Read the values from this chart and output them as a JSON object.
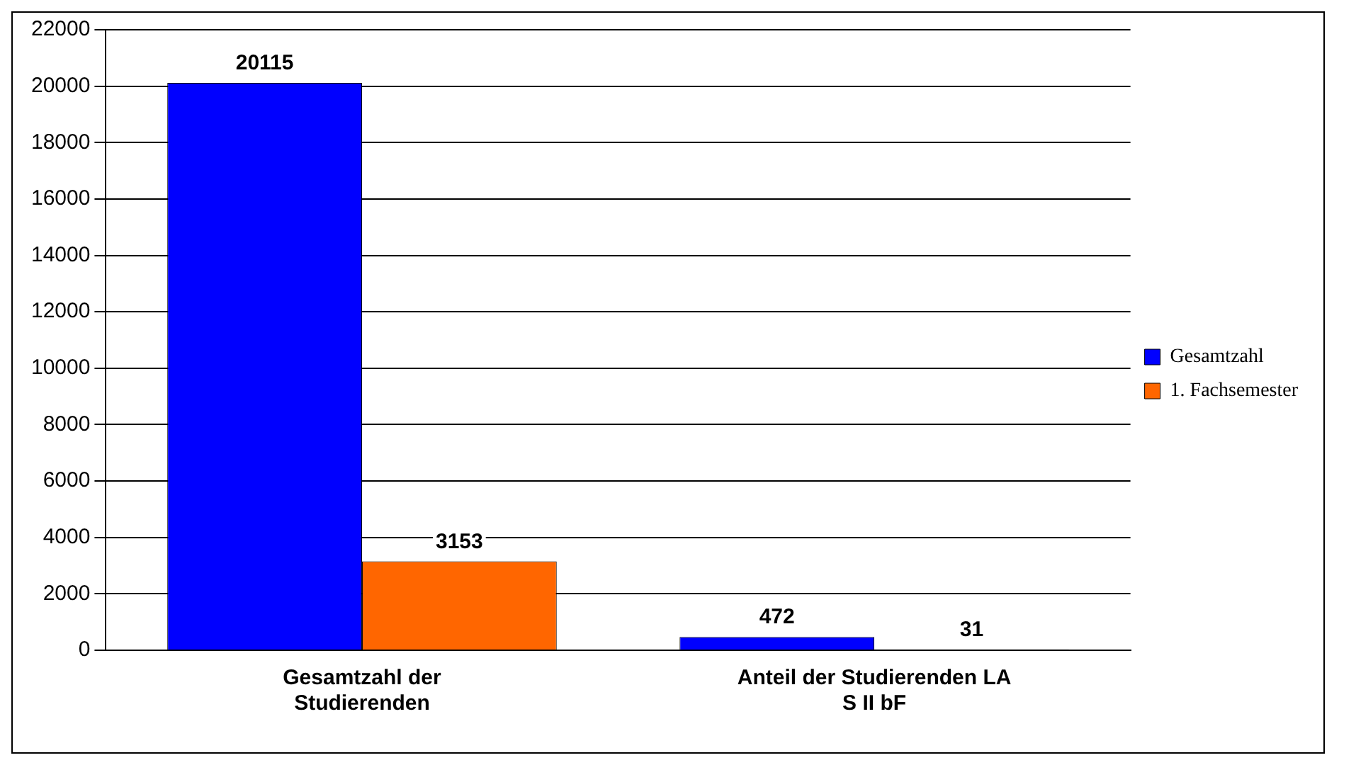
{
  "chart_data": {
    "type": "bar",
    "categories": [
      "Gesamtzahl der Studierenden",
      "Anteil der Studierenden LA S II bF"
    ],
    "series": [
      {
        "name": "Gesamtzahl",
        "color": "#0000ff",
        "values": [
          20115,
          472
        ]
      },
      {
        "name": "1. Fachsemester",
        "color": "#ff6600",
        "values": [
          3153,
          31
        ]
      }
    ],
    "ylim": [
      0,
      22000
    ],
    "yticks": [
      0,
      2000,
      4000,
      6000,
      8000,
      10000,
      12000,
      14000,
      16000,
      18000,
      20000,
      22000
    ],
    "grid": "y",
    "legend": "right",
    "data_labels": true
  }
}
